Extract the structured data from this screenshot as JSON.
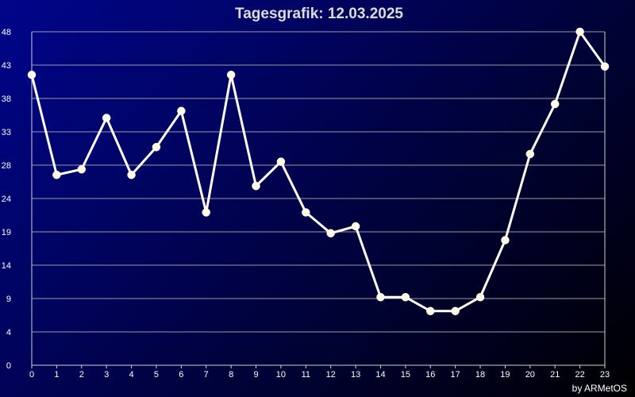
{
  "chart_data": {
    "type": "line",
    "title": "Tagesgrafik: 12.03.2025",
    "credit": "by ARMetOS",
    "xlabel": "",
    "ylabel": "",
    "x_ticks": [
      "0",
      "1",
      "2",
      "3",
      "4",
      "5",
      "6",
      "7",
      "8",
      "9",
      "10",
      "11",
      "12",
      "13",
      "14",
      "15",
      "16",
      "17",
      "18",
      "19",
      "20",
      "21",
      "22",
      "23"
    ],
    "y_ticks": [
      "0",
      "4",
      "9",
      "14",
      "19",
      "24",
      "28",
      "33",
      "38",
      "43",
      "48"
    ],
    "ylim": [
      0,
      48
    ],
    "grid": true,
    "legend": "none",
    "series": [
      {
        "values": [
          41.8,
          27.4,
          28.2,
          35.6,
          27.4,
          31.4,
          36.6,
          22.0,
          41.8,
          25.8,
          29.3,
          22.0,
          19.0,
          20.0,
          9.8,
          9.8,
          7.8,
          7.8,
          9.8,
          18.0,
          30.4,
          37.6,
          48.0,
          43.0
        ]
      }
    ],
    "colors": {
      "line": "#ffffff",
      "marker": "#fffbe6",
      "grid": "#9a9aa6",
      "axis": "#d0d0d0",
      "text": "#ffffff"
    }
  }
}
